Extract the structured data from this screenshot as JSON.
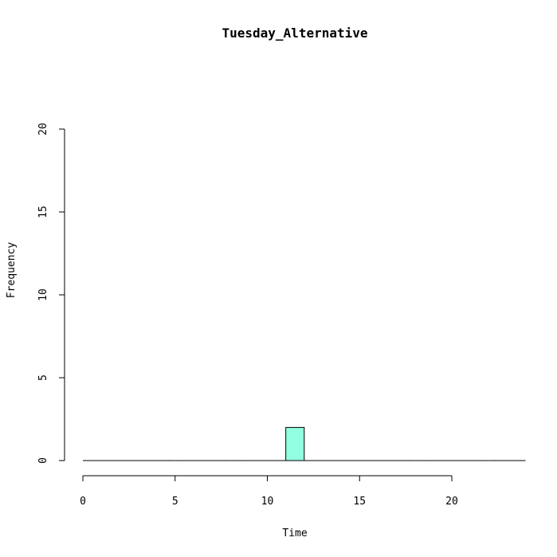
{
  "chart_data": {
    "type": "bar",
    "title": "Tuesday_Alternative",
    "xlabel": "Time",
    "ylabel": "Frequency",
    "xlim": [
      0,
      24
    ],
    "ylim": [
      0,
      20
    ],
    "x_ticks": [
      0,
      5,
      10,
      15,
      20
    ],
    "y_ticks": [
      0,
      5,
      10,
      15,
      20
    ],
    "bins": [
      {
        "start": 0,
        "end": 1,
        "value": 0
      },
      {
        "start": 1,
        "end": 2,
        "value": 0
      },
      {
        "start": 2,
        "end": 3,
        "value": 0
      },
      {
        "start": 3,
        "end": 4,
        "value": 0
      },
      {
        "start": 4,
        "end": 5,
        "value": 0
      },
      {
        "start": 5,
        "end": 6,
        "value": 0
      },
      {
        "start": 6,
        "end": 7,
        "value": 0
      },
      {
        "start": 7,
        "end": 8,
        "value": 0
      },
      {
        "start": 8,
        "end": 9,
        "value": 0
      },
      {
        "start": 9,
        "end": 10,
        "value": 0
      },
      {
        "start": 10,
        "end": 11,
        "value": 0
      },
      {
        "start": 11,
        "end": 12,
        "value": 2
      },
      {
        "start": 12,
        "end": 13,
        "value": 0
      },
      {
        "start": 13,
        "end": 14,
        "value": 0
      },
      {
        "start": 14,
        "end": 15,
        "value": 0
      },
      {
        "start": 15,
        "end": 16,
        "value": 0
      },
      {
        "start": 16,
        "end": 17,
        "value": 0
      },
      {
        "start": 17,
        "end": 18,
        "value": 0
      },
      {
        "start": 18,
        "end": 19,
        "value": 0
      },
      {
        "start": 19,
        "end": 20,
        "value": 0
      },
      {
        "start": 20,
        "end": 21,
        "value": 0
      },
      {
        "start": 21,
        "end": 22,
        "value": 0
      },
      {
        "start": 22,
        "end": 23,
        "value": 0
      },
      {
        "start": 23,
        "end": 24,
        "value": 0
      }
    ],
    "bar_color": "#91ffe0",
    "stroke_color": "#000000",
    "grid": false
  }
}
